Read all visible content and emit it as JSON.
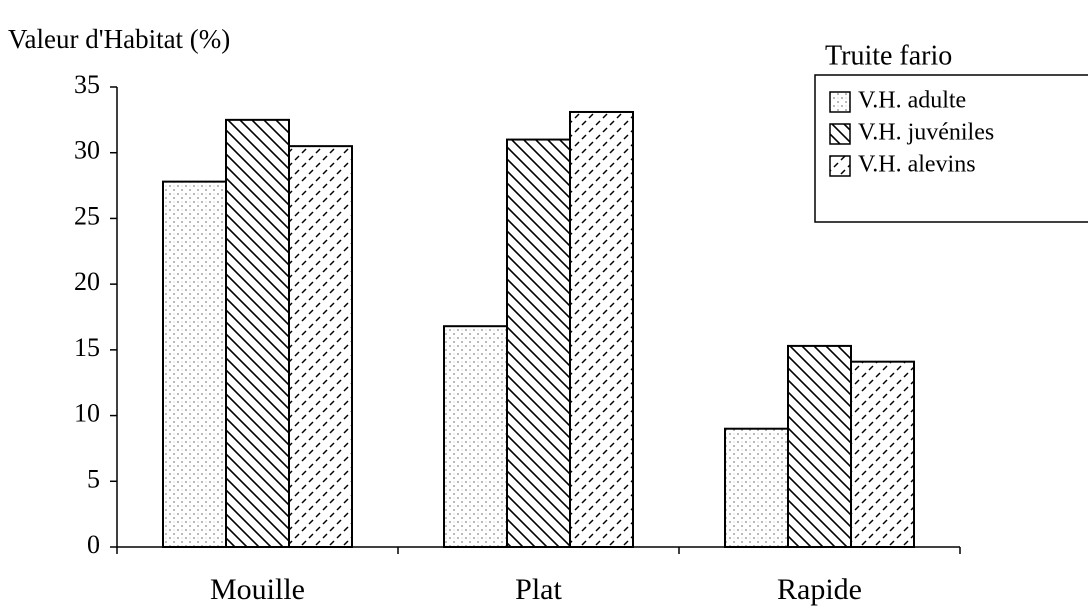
{
  "chart_data": {
    "type": "bar",
    "title": "Valeur d'Habitat (%)",
    "legend_title": "Truite fario",
    "categories": [
      "Mouille",
      "Plat",
      "Rapide"
    ],
    "series": [
      {
        "name": "V.H. adulte",
        "color": "#999999",
        "values": [
          27.8,
          16.8,
          9
        ]
      },
      {
        "name": "V.H. juvéniles",
        "color": "#000000",
        "values": [
          32.5,
          31,
          15.3
        ]
      },
      {
        "name": "V.H. alevins",
        "color": "#000000",
        "values": [
          30.5,
          33.1,
          14.1
        ]
      }
    ],
    "ylim": [
      0,
      35
    ],
    "yticks": [
      0,
      5,
      10,
      15,
      20,
      25,
      30,
      35
    ],
    "grid": false,
    "legend": "top-right"
  }
}
